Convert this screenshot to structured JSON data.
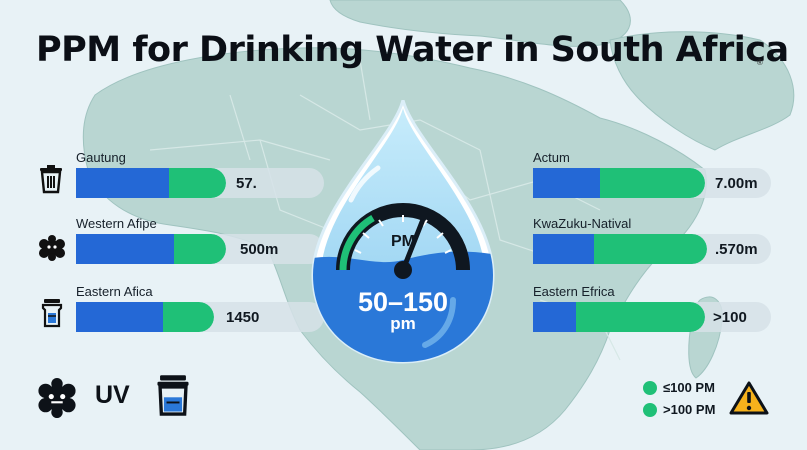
{
  "title": "PPM for Drinking Water in South Africa",
  "title_mark": "®",
  "colors": {
    "background": "#e8f2f6",
    "land": "#b9d6d2",
    "bar_blue": "#2468d6",
    "bar_green": "#1fc077",
    "water_drop": "#a3d8f4",
    "water_fill": "#2a78d8",
    "warning": "#f6b21c"
  },
  "left_items": [
    {
      "label": "Gautung",
      "value": "57.",
      "icon": "trash-bin-icon",
      "blue_fraction": 0.62
    },
    {
      "label": "Western Afipe",
      "value": "500m",
      "icon": "particle-cluster-icon",
      "blue_fraction": 0.65
    },
    {
      "label": "Eastern Afica",
      "value": "1450",
      "icon": "water-filter-icon",
      "blue_fraction": 0.63
    }
  ],
  "right_items": [
    {
      "label": "Actum",
      "value": "7.00m",
      "blue_fraction": 0.39
    },
    {
      "label": "KwaZuku-Natival",
      "value": ".570m",
      "blue_fraction": 0.35
    },
    {
      "label": "Eastern Efrica",
      "value": ">100",
      "blue_fraction": 0.25
    }
  ],
  "gauge": {
    "label": "PM",
    "range_text": "50–150",
    "unit": "pm",
    "needle_level": 0.62,
    "icon": "speedometer-icon"
  },
  "bottom_left": {
    "uv_label": "UV",
    "icons": [
      "particle-cluster-icon",
      "water-jar-icon"
    ]
  },
  "legend": [
    {
      "label": "≤100 PM",
      "color": "#1fc077"
    },
    {
      "label": ">100 PM",
      "color": "#1fc077"
    }
  ],
  "warning_icon": "warning-triangle-icon"
}
